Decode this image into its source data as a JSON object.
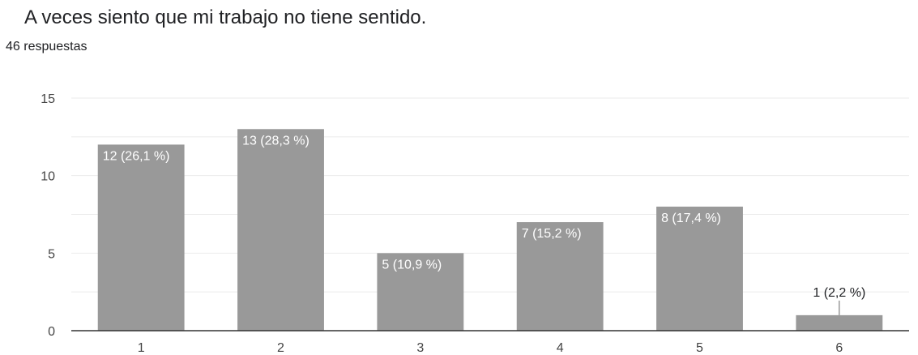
{
  "question": {
    "title": "A veces siento que mi trabajo no tiene sentido.",
    "responses": "46 respuestas"
  },
  "colors": {
    "bar": "#999999",
    "label_inside": "#ffffff",
    "label_outside": "#202124",
    "gridline": "#ebebeb",
    "baseline": "#333333"
  },
  "chart_data": {
    "type": "bar",
    "title": "",
    "xlabel": "",
    "ylabel": "",
    "categories": [
      "1",
      "2",
      "3",
      "4",
      "5",
      "6"
    ],
    "values": [
      12,
      13,
      5,
      7,
      8,
      1
    ],
    "data_labels": [
      "12 (26,1 %)",
      "13 (28,3 %)",
      "5 (10,9 %)",
      "7 (15,2 %)",
      "8 (17,4 %)",
      "1 (2,2 %)"
    ],
    "ylim": [
      0,
      15
    ],
    "yticks": [
      "0",
      "5",
      "10",
      "15"
    ],
    "grid": true
  }
}
